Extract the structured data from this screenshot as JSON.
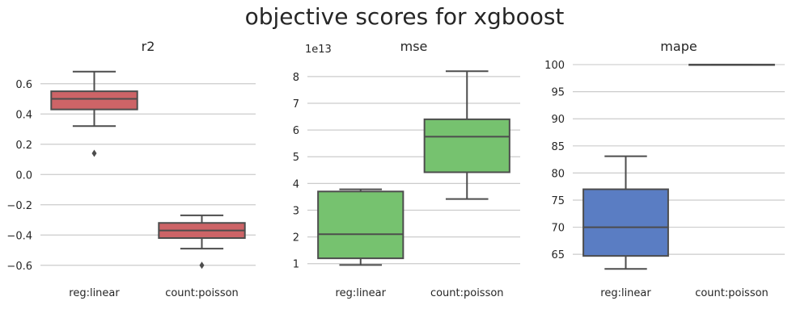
{
  "figure": {
    "title": "objective scores for xgboost"
  },
  "chart_data": [
    {
      "type": "box",
      "title": "r2",
      "categories": [
        "reg:linear",
        "count:poisson"
      ],
      "color": "#cd6467",
      "ylim": [
        -0.66,
        0.78
      ],
      "yticks": [
        -0.6,
        -0.4,
        -0.2,
        0.0,
        0.2,
        0.4,
        0.6
      ],
      "ytick_labels": [
        "−0.6",
        "−0.4",
        "−0.2",
        "0.0",
        "0.2",
        "0.4",
        "0.6"
      ],
      "offset_label": "",
      "grid": true,
      "boxes": [
        {
          "category": "reg:linear",
          "whislo": 0.32,
          "q1": 0.43,
          "med": 0.5,
          "q3": 0.55,
          "whishi": 0.68,
          "fliers": [
            0.14
          ]
        },
        {
          "category": "count:poisson",
          "whislo": -0.49,
          "q1": -0.42,
          "med": -0.37,
          "q3": -0.32,
          "whishi": -0.27,
          "fliers": [
            -0.6
          ]
        }
      ]
    },
    {
      "type": "box",
      "title": "mse",
      "categories": [
        "reg:linear",
        "count:poisson"
      ],
      "color": "#76c26f",
      "ylim": [
        0.6,
        8.75
      ],
      "yticks": [
        1,
        2,
        3,
        4,
        5,
        6,
        7,
        8
      ],
      "ytick_labels": [
        "1",
        "2",
        "3",
        "4",
        "5",
        "6",
        "7",
        "8"
      ],
      "offset_label": "1e13",
      "grid": true,
      "boxes": [
        {
          "category": "reg:linear",
          "whislo": 0.95,
          "q1": 1.2,
          "med": 2.1,
          "q3": 3.7,
          "whishi": 3.78,
          "fliers": []
        },
        {
          "category": "count:poisson",
          "whislo": 3.42,
          "q1": 4.42,
          "med": 5.75,
          "q3": 6.4,
          "whishi": 8.2,
          "fliers": []
        }
      ]
    },
    {
      "type": "box",
      "title": "mape",
      "categories": [
        "reg:linear",
        "count:poisson"
      ],
      "color": "#5a7dc3",
      "ylim": [
        61.3,
        101.5
      ],
      "yticks": [
        65,
        70,
        75,
        80,
        85,
        90,
        95,
        100
      ],
      "ytick_labels": [
        "65",
        "70",
        "75",
        "80",
        "85",
        "90",
        "95",
        "100"
      ],
      "offset_label": "",
      "grid": true,
      "boxes": [
        {
          "category": "reg:linear",
          "whislo": 62.3,
          "q1": 64.7,
          "med": 70.0,
          "q3": 77.0,
          "whishi": 83.1,
          "fliers": []
        },
        {
          "category": "count:poisson",
          "whislo": 100.0,
          "q1": 100.0,
          "med": 100.0,
          "q3": 100.0,
          "whishi": 100.0,
          "fliers": []
        }
      ]
    }
  ]
}
